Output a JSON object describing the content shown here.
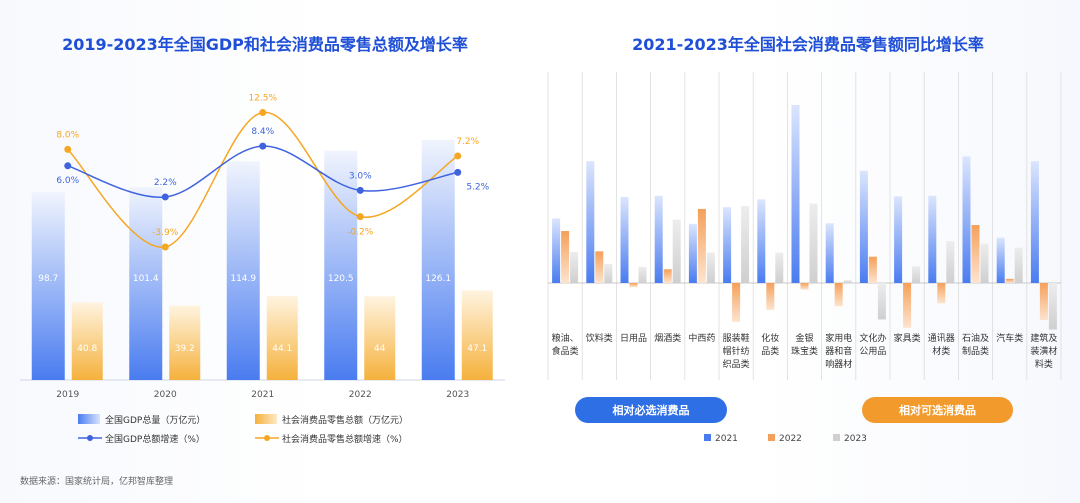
{
  "source": "数据来源：国家统计局，亿邦智库整理",
  "chart_data": [
    {
      "type": "bar",
      "title": "2019-2023年全国GDP和社会消费品零售总额及增长率",
      "categories": [
        "2019",
        "2020",
        "2021",
        "2022",
        "2023"
      ],
      "series": [
        {
          "name": "全国GDP总量（万亿元）",
          "kind": "bar",
          "values": [
            98.7,
            101.4,
            114.9,
            120.5,
            126.1
          ],
          "color": "#4a7cf0"
        },
        {
          "name": "社会消费品零售总额（万亿元）",
          "kind": "bar",
          "values": [
            40.8,
            39.2,
            44.1,
            44.0,
            47.1
          ],
          "color": "#f5b13c"
        },
        {
          "name": "全国GDP总额增速（%）",
          "kind": "line",
          "values": [
            6.0,
            2.2,
            8.4,
            3.0,
            5.2
          ],
          "labels": [
            "6.0%",
            "2.2%",
            "8.4%",
            "3.0%",
            "5.2%"
          ],
          "color": "#3f63de"
        },
        {
          "name": "社会消费品零售总额增速（%）",
          "kind": "line",
          "values": [
            8.0,
            -3.9,
            12.5,
            -0.2,
            7.2
          ],
          "labels": [
            "8.0%",
            "-3.9%",
            "12.5%",
            "-0.2%",
            "7.2%"
          ],
          "color": "#f5a623"
        }
      ]
    },
    {
      "type": "bar",
      "title": "2021-2023年全国社会消费品零售额同比增长率",
      "categories": [
        [
          "粮油、",
          "食品类"
        ],
        [
          "饮料类"
        ],
        [
          "日用品"
        ],
        [
          "烟酒类"
        ],
        [
          "中西药"
        ],
        [
          "服装鞋",
          "帽针纺",
          "织品类"
        ],
        [
          "化妆",
          "品类"
        ],
        [
          "金银",
          "珠宝类"
        ],
        [
          "家用电",
          "器和音",
          "响器材"
        ],
        [
          "文化办",
          "公用品"
        ],
        [
          "家具类"
        ],
        [
          "通讯器",
          "材类"
        ],
        [
          "石油及",
          "制品类"
        ],
        [
          "汽车类"
        ],
        [
          "建筑及",
          "装潢材",
          "料类"
        ]
      ],
      "series": [
        {
          "name": "2021",
          "values": [
            10.8,
            20.4,
            14.4,
            14.6,
            9.9,
            12.7,
            14.0,
            29.8,
            10.0,
            18.8,
            14.5,
            14.6,
            21.2,
            7.6,
            20.4
          ],
          "color": "#4a7cf0"
        },
        {
          "name": "2022",
          "values": [
            8.7,
            5.3,
            -0.7,
            2.3,
            12.4,
            -6.5,
            -4.5,
            -1.1,
            -3.9,
            4.4,
            -7.5,
            -3.4,
            9.7,
            0.7,
            -6.2
          ],
          "color": "#f5a05a"
        },
        {
          "name": "2023",
          "values": [
            5.2,
            3.2,
            2.7,
            10.6,
            5.1,
            12.9,
            5.1,
            13.3,
            0.5,
            -6.1,
            2.8,
            7.0,
            6.6,
            5.9,
            -7.8
          ],
          "color": "#d3d3d3"
        }
      ],
      "group_labels": [
        "相对必选消费品",
        "相对可选消费品"
      ]
    }
  ]
}
